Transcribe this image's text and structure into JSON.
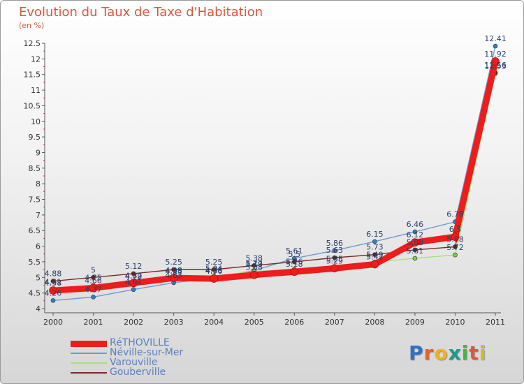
{
  "header": {
    "title": "Evolution du Taux de Taxe d'Habitation",
    "units": "(en %)"
  },
  "logo": {
    "text": "Proxiti",
    "letter_colors": [
      "#2f6fc6",
      "#e3642b",
      "#f0b21f",
      "#1f9a8a",
      "#4bb24a",
      "#e0553f",
      "#d9b92a"
    ]
  },
  "chart_data": {
    "type": "line",
    "title": "Evolution du Taux de Taxe d'Habitation",
    "ylabel": "(en %)",
    "xlabel": "",
    "categories": [
      "2000",
      "2001",
      "2002",
      "2003",
      "2004",
      "2005",
      "2006",
      "2007",
      "2008",
      "2009",
      "2010",
      "2011"
    ],
    "ylim": [
      4,
      12.5
    ],
    "yticks": [
      "4",
      "4.5",
      "5",
      "5.5",
      "6",
      "6.5",
      "7",
      "7.5",
      "8",
      "8.5",
      "9",
      "9.5",
      "10",
      "10.5",
      "11",
      "11.5",
      "12",
      "12.5"
    ],
    "grid": false,
    "legend_position": "bottom-left",
    "series": [
      {
        "name": "RéTHOVILLE",
        "color": "#ee1c1c",
        "marker": "#ee1c1c",
        "width": "thick",
        "values": [
          4.58,
          4.66,
          4.82,
          4.98,
          4.96,
          5.08,
          5.18,
          5.29,
          5.42,
          6.12,
          6.3,
          11.92
        ],
        "labels": [
          "4.58",
          "4.66",
          "4.82",
          "4.98",
          "4.96",
          "5.08",
          "5.18",
          "5.29",
          "5.42",
          "6.12",
          "6.3",
          "11.92"
        ]
      },
      {
        "name": "Néville-sur-Mer",
        "color": "#6b9bd2",
        "marker": "#2e7fc8",
        "width": "thin",
        "values": [
          4.26,
          4.37,
          4.61,
          4.83,
          4.98,
          5.22,
          5.61,
          5.86,
          6.15,
          6.46,
          6.78,
          12.41
        ],
        "labels": [
          "4.26",
          "4.37",
          "4.61",
          "4.83",
          "4.98",
          "5.22",
          "5.61",
          "5.86",
          "6.15",
          "6.46",
          "6.78",
          "12.41"
        ]
      },
      {
        "name": "Varouville",
        "color": "#a6e07a",
        "marker": "#7cd04a",
        "width": "thin",
        "values": [
          4.61,
          4.75,
          4.79,
          4.95,
          5.04,
          5.19,
          5.26,
          5.35,
          5.49,
          5.61,
          5.72,
          11.53
        ],
        "labels": [
          "4.61",
          "4.75",
          "4.79",
          "4.95",
          "5.04",
          "5.19",
          "5.26",
          "5.35",
          "5.49",
          "5.61",
          "5.72",
          "11.53"
        ]
      },
      {
        "name": "Gouberville",
        "color": "#7a2a2a",
        "marker": "#6b1f1f",
        "width": "thin",
        "values": [
          4.88,
          5.0,
          5.12,
          5.25,
          5.25,
          5.38,
          5.5,
          5.63,
          5.73,
          5.88,
          5.98,
          11.56
        ],
        "labels": [
          "4.88",
          "5",
          "5.12",
          "5.25",
          "5.25",
          "5.38",
          "5.5",
          "5.63",
          "5.73",
          "5.88",
          "5.98",
          "11.56"
        ]
      }
    ]
  }
}
